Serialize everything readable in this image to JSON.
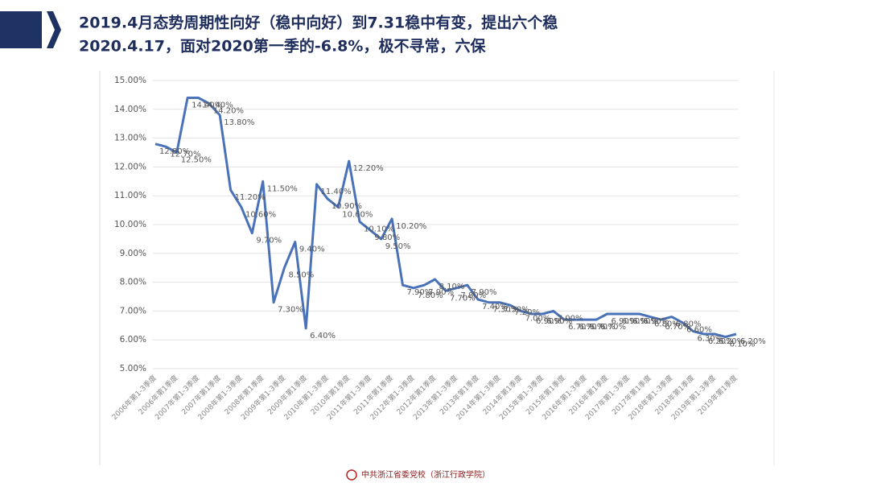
{
  "header": {
    "title_lines": [
      "2019.4月态势周期性向好（稳中向好）到7.31稳中有变，提出六个稳",
      "2020.4.17，面对2020第一季的-6.8%，极不寻常，六保"
    ]
  },
  "chart_data": {
    "type": "line",
    "categories": [
      "2006年第1-3季度",
      null,
      "2006年第1季度",
      null,
      "2007年第1-3季度",
      null,
      "2007年第1季度",
      null,
      "2008年第1-3季度",
      null,
      "2008年第1季度",
      null,
      "2009年第1-3季度",
      null,
      "2009年第1季度",
      null,
      "2010年第1-3季度",
      null,
      "2010年第1季度",
      null,
      "2011年第1-3季度",
      null,
      "2011年第1季度",
      null,
      "2012年第1-3季度",
      null,
      "2012年第1季度",
      null,
      "2013年第1-3季度",
      null,
      "2013年第1季度",
      null,
      "2014年第1-3季度",
      null,
      "2014年第1季度",
      null,
      "2015年第1-3季度",
      null,
      "2015年第1季度",
      null,
      "2016年第1-3季度",
      null,
      "2016年第1季度",
      null,
      "2017年第1-3季度",
      null,
      "2017年第1季度",
      null,
      "2018年第1-3季度",
      null,
      "2018年第1季度",
      null,
      "2019年第1-3季度",
      null,
      "2019年第1季度"
    ],
    "series": [
      {
        "color": "#4a72b8",
        "values": [
          12.8,
          12.7,
          12.5,
          14.4,
          14.4,
          14.2,
          13.8,
          11.2,
          10.6,
          9.7,
          11.5,
          7.3,
          8.5,
          9.4,
          6.4,
          11.4,
          10.9,
          10.6,
          12.2,
          10.1,
          9.8,
          9.5,
          10.2,
          7.9,
          7.8,
          7.9,
          8.1,
          7.7,
          7.8,
          7.9,
          7.4,
          7.3,
          7.3,
          7.2,
          7.0,
          6.9,
          6.9,
          7.0,
          6.7,
          6.7,
          6.7,
          6.7,
          6.9,
          6.9,
          6.9,
          6.9,
          6.8,
          6.7,
          6.8,
          6.6,
          6.3,
          6.2,
          6.2,
          6.1,
          6.2
        ],
        "value_labels": [
          "12.80%",
          "12.70%",
          "12.50%",
          "14.40%",
          "14.40%",
          "14.20%",
          "13.80%",
          "11.20%",
          "10.60%",
          "9.70%",
          "11.50%",
          "7.30%",
          "8.50%",
          "9.40%",
          "6.40%",
          "11.40%",
          "10.90%",
          "10.60%",
          "12.20%",
          "10.10%",
          "9.80%",
          "9.50%",
          "10.20%",
          "7.90%",
          "7.80%",
          "7.90%",
          "8.10%",
          "7.70%",
          "7.80%",
          "7.90%",
          "7.40%",
          "7.30%",
          "7.30%",
          "7.20%",
          "7.00%",
          "6.90%",
          "6.90%",
          "7.00%",
          "6.70%",
          "6.70%",
          "6.70%",
          "6.70%",
          "6.90%",
          "6.90%",
          "6.90%",
          "6.90%",
          "6.80%",
          "6.70%",
          "6.80%",
          "6.60%",
          "6.30%",
          "6.20%",
          "6.20%",
          "6.10%",
          "6.20%"
        ]
      }
    ],
    "ylim": [
      5,
      15
    ],
    "yticks": [
      {
        "value": 5,
        "label": "5.00%"
      },
      {
        "value": 6,
        "label": "6.00%"
      },
      {
        "value": 7,
        "label": "7.00%"
      },
      {
        "value": 8,
        "label": "8.00%"
      },
      {
        "value": 9,
        "label": "9.00%"
      },
      {
        "value": 10,
        "label": "10.00%"
      },
      {
        "value": 11,
        "label": "11.00%"
      },
      {
        "value": 12,
        "label": "12.00%"
      },
      {
        "value": 13,
        "label": "13.00%"
      },
      {
        "value": 14,
        "label": "14.00%"
      },
      {
        "value": 15,
        "label": "15.00%"
      }
    ],
    "grid": true
  },
  "footer": {
    "text": "中共浙江省委党校（浙江行政学院）"
  }
}
